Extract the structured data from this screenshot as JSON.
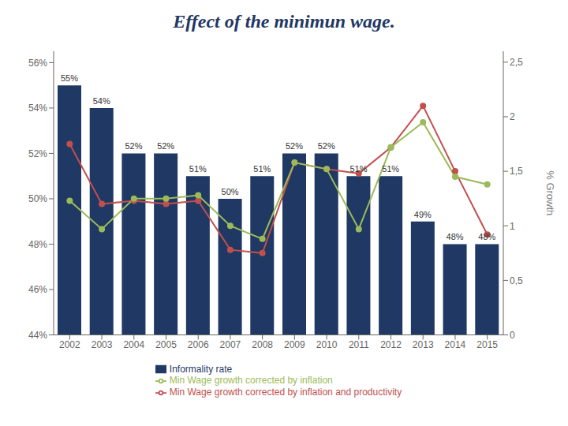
{
  "chart_data": {
    "type": "bar",
    "title": "Effect of the minimun wage.",
    "categories": [
      "2002",
      "2003",
      "2004",
      "2005",
      "2006",
      "2007",
      "2008",
      "2009",
      "2010",
      "2011",
      "2012",
      "2013",
      "2014",
      "2015"
    ],
    "series": [
      {
        "name": "Informality rate",
        "type": "bar",
        "color": "#1F3864",
        "data_labels": true,
        "values": [
          0.55,
          0.54,
          0.52,
          0.52,
          0.51,
          0.5,
          0.51,
          0.52,
          0.52,
          0.51,
          0.51,
          0.49,
          0.48,
          0.48
        ],
        "value_labels": [
          "55%",
          "54%",
          "52%",
          "52%",
          "51%",
          "50%",
          "51%",
          "52%",
          "52%",
          "51%",
          "51%",
          "49%",
          "48%",
          "48%"
        ]
      },
      {
        "name": "Min Wage growth corrected by inflation and productivity",
        "type": "line",
        "axis": "y2",
        "color": "#C0504D",
        "marker": "circle",
        "values": [
          1.75,
          1.2,
          1.23,
          1.2,
          1.23,
          0.78,
          0.75,
          1.58,
          1.52,
          1.48,
          1.72,
          2.1,
          1.5,
          0.92
        ]
      },
      {
        "name": "Min Wage growth corrected by inflation",
        "type": "line",
        "axis": "y2",
        "color": "#9BBB59",
        "marker": "circle",
        "values": [
          1.23,
          0.97,
          1.25,
          1.25,
          1.28,
          1.0,
          0.88,
          1.58,
          1.52,
          0.97,
          1.72,
          1.95,
          1.45,
          1.38
        ]
      }
    ],
    "ylim": [
      0.44,
      0.565
    ],
    "yticks": [
      {
        "value": 0.44,
        "label": "44%"
      },
      {
        "value": 0.46,
        "label": "46%"
      },
      {
        "value": 0.48,
        "label": "48%"
      },
      {
        "value": 0.5,
        "label": "50%"
      },
      {
        "value": 0.52,
        "label": "52%"
      },
      {
        "value": 0.54,
        "label": "54%"
      },
      {
        "value": 0.56,
        "label": "56%"
      }
    ],
    "y2lim": [
      0,
      2.6
    ],
    "y2ticks": [
      0,
      {
        "value": 0.5,
        "label": "0,5"
      },
      1,
      {
        "value": 1.5,
        "label": "1,5"
      },
      2,
      {
        "value": 2.5,
        "label": "2,5"
      }
    ],
    "y2label": "% Growth",
    "grid": false,
    "legend": "bottom"
  }
}
